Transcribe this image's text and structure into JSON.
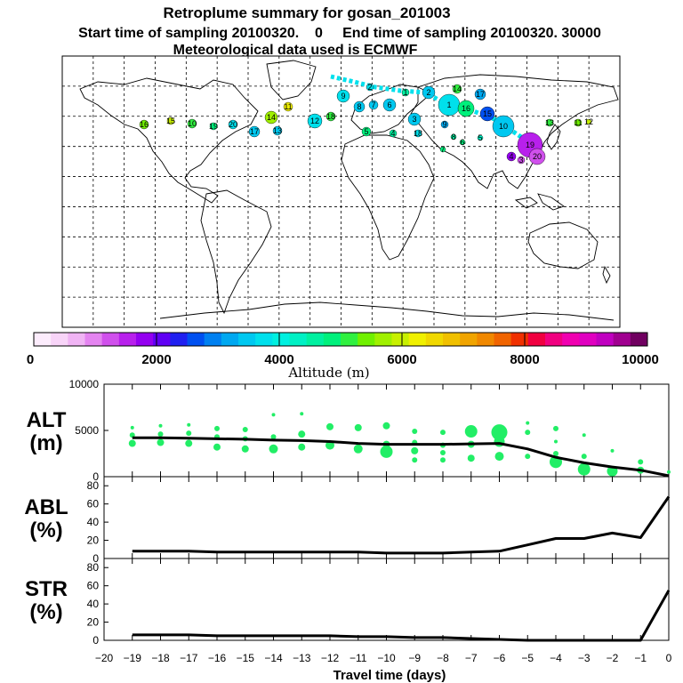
{
  "title": {
    "line1": "Retroplume summary for gosan_201003",
    "line2": "Start time of sampling 20100320.    0     End time of sampling 20100320. 30000",
    "line3": "Meteorological data used is ECMWF"
  },
  "colorbar": {
    "label": "Altitude (m)",
    "ticks": [
      "0",
      "2000",
      "4000",
      "6000",
      "8000",
      "10000"
    ],
    "colors": [
      "#fcecfc",
      "#f8d4f8",
      "#f0b4f4",
      "#e484f0",
      "#d050ec",
      "#b820ec",
      "#9400f0",
      "#6000f4",
      "#2020f0",
      "#0050f0",
      "#0080f0",
      "#00a8f0",
      "#00c8f0",
      "#00e0ec",
      "#00f0e0",
      "#00f0c4",
      "#00f0a0",
      "#00f07c",
      "#30f040",
      "#70f000",
      "#a0f000",
      "#c8f000",
      "#f0f000",
      "#f0d800",
      "#f0c000",
      "#f0a400",
      "#f08800",
      "#f06400",
      "#f03000",
      "#f00040",
      "#f00080",
      "#f000b0",
      "#e000c0",
      "#c000c0",
      "#a00090",
      "#700060"
    ]
  },
  "map_labels": [
    "16",
    "15",
    "10",
    "19",
    "20",
    "17",
    "14",
    "13",
    "11",
    "12",
    "18",
    "9",
    "8",
    "7",
    "6",
    "5",
    "4",
    "3",
    "2",
    "1"
  ],
  "chart_data": [
    {
      "name": "ALT",
      "type": "scatter+line",
      "ylabel": [
        "ALT",
        "(m)"
      ],
      "ylim": [
        0,
        10000
      ],
      "yticks": [
        "0",
        "5000",
        "10000"
      ],
      "xlim": [
        -20,
        0
      ],
      "line": {
        "x": [
          -19,
          -18,
          -17,
          -16,
          -15,
          -14,
          -13,
          -12,
          -11,
          -10,
          -9,
          -8,
          -7,
          -6,
          -5,
          -4,
          -3,
          -2,
          -1,
          0
        ],
        "y": [
          4200,
          4200,
          4150,
          4100,
          4050,
          3950,
          3900,
          3800,
          3600,
          3500,
          3500,
          3500,
          3550,
          3600,
          3000,
          2100,
          1500,
          1050,
          700,
          100
        ]
      },
      "points": [
        {
          "x": -19,
          "y": 5300,
          "s": 2
        },
        {
          "x": -19,
          "y": 4500,
          "s": 3
        },
        {
          "x": -19,
          "y": 3600,
          "s": 4
        },
        {
          "x": -18,
          "y": 5500,
          "s": 2
        },
        {
          "x": -18,
          "y": 4600,
          "s": 3
        },
        {
          "x": -18,
          "y": 3700,
          "s": 4
        },
        {
          "x": -17,
          "y": 5600,
          "s": 2
        },
        {
          "x": -17,
          "y": 4700,
          "s": 3
        },
        {
          "x": -17,
          "y": 3600,
          "s": 4
        },
        {
          "x": -16,
          "y": 5200,
          "s": 3
        },
        {
          "x": -16,
          "y": 4300,
          "s": 3
        },
        {
          "x": -16,
          "y": 3200,
          "s": 4
        },
        {
          "x": -15,
          "y": 5100,
          "s": 3
        },
        {
          "x": -15,
          "y": 4100,
          "s": 3
        },
        {
          "x": -15,
          "y": 3000,
          "s": 4
        },
        {
          "x": -14,
          "y": 6700,
          "s": 2
        },
        {
          "x": -14,
          "y": 4300,
          "s": 3
        },
        {
          "x": -14,
          "y": 3000,
          "s": 5
        },
        {
          "x": -13,
          "y": 6800,
          "s": 2
        },
        {
          "x": -13,
          "y": 4600,
          "s": 4
        },
        {
          "x": -13,
          "y": 3200,
          "s": 4
        },
        {
          "x": -12,
          "y": 5400,
          "s": 4
        },
        {
          "x": -12,
          "y": 3400,
          "s": 5
        },
        {
          "x": -11,
          "y": 5300,
          "s": 4
        },
        {
          "x": -11,
          "y": 3000,
          "s": 5
        },
        {
          "x": -10,
          "y": 5500,
          "s": 4
        },
        {
          "x": -10,
          "y": 3500,
          "s": 4
        },
        {
          "x": -10,
          "y": 2700,
          "s": 7
        },
        {
          "x": -9,
          "y": 4900,
          "s": 3
        },
        {
          "x": -9,
          "y": 3700,
          "s": 3
        },
        {
          "x": -9,
          "y": 2800,
          "s": 4
        },
        {
          "x": -9,
          "y": 1800,
          "s": 3
        },
        {
          "x": -8,
          "y": 4800,
          "s": 3
        },
        {
          "x": -8,
          "y": 3400,
          "s": 3
        },
        {
          "x": -8,
          "y": 2600,
          "s": 3
        },
        {
          "x": -8,
          "y": 1800,
          "s": 3
        },
        {
          "x": -7,
          "y": 4900,
          "s": 7
        },
        {
          "x": -7,
          "y": 3500,
          "s": 4
        },
        {
          "x": -7,
          "y": 2000,
          "s": 4
        },
        {
          "x": -6,
          "y": 4800,
          "s": 9
        },
        {
          "x": -6,
          "y": 3800,
          "s": 6
        },
        {
          "x": -6,
          "y": 2200,
          "s": 5
        },
        {
          "x": -5,
          "y": 5800,
          "s": 2
        },
        {
          "x": -5,
          "y": 4800,
          "s": 3
        },
        {
          "x": -5,
          "y": 2200,
          "s": 3
        },
        {
          "x": -4,
          "y": 5200,
          "s": 3
        },
        {
          "x": -4,
          "y": 3800,
          "s": 2
        },
        {
          "x": -4,
          "y": 2500,
          "s": 3
        },
        {
          "x": -4,
          "y": 1600,
          "s": 7
        },
        {
          "x": -3,
          "y": 4500,
          "s": 2
        },
        {
          "x": -3,
          "y": 2200,
          "s": 3
        },
        {
          "x": -3,
          "y": 800,
          "s": 7
        },
        {
          "x": -2,
          "y": 2800,
          "s": 2
        },
        {
          "x": -2,
          "y": 600,
          "s": 6
        },
        {
          "x": -1,
          "y": 1600,
          "s": 3
        },
        {
          "x": -1,
          "y": 700,
          "s": 4
        },
        {
          "x": 0,
          "y": 500,
          "s": 2
        }
      ]
    },
    {
      "name": "ABL",
      "type": "line",
      "ylabel": [
        "ABL",
        "(%)"
      ],
      "ylim": [
        0,
        90
      ],
      "yticks": [
        "0",
        "20",
        "40",
        "60",
        "80"
      ],
      "xlim": [
        -20,
        0
      ],
      "x": [
        -19,
        -18,
        -17,
        -16,
        -15,
        -14,
        -13,
        -12,
        -11,
        -10,
        -9,
        -8,
        -7,
        -6,
        -5,
        -4,
        -3,
        -2,
        -1,
        0
      ],
      "y": [
        8,
        8,
        8,
        7,
        7,
        7,
        7,
        7,
        7,
        6,
        6,
        6,
        7,
        8,
        15,
        22,
        22,
        28,
        23,
        68
      ]
    },
    {
      "name": "STR",
      "type": "line",
      "ylabel": [
        "STR",
        "(%)"
      ],
      "ylim": [
        0,
        90
      ],
      "yticks": [
        "0",
        "20",
        "40",
        "60",
        "80"
      ],
      "xlim": [
        -20,
        0
      ],
      "x": [
        -19,
        -18,
        -17,
        -16,
        -15,
        -14,
        -13,
        -12,
        -11,
        -10,
        -9,
        -8,
        -7,
        -6,
        -5,
        -4,
        -3,
        -2,
        -1,
        0
      ],
      "y": [
        6,
        6,
        6,
        5,
        5,
        5,
        5,
        5,
        4,
        4,
        3,
        3,
        2,
        1,
        0,
        0,
        0,
        0,
        0,
        55
      ]
    }
  ],
  "x_axis": {
    "label": "Travel time (days)",
    "ticks": [
      "−20",
      "−19",
      "−18",
      "−17",
      "−16",
      "−15",
      "−14",
      "−13",
      "−12",
      "−11",
      "−10",
      "−9",
      "−8",
      "−7",
      "−6",
      "−5",
      "−4",
      "−3",
      "−2",
      "−1",
      "0"
    ]
  },
  "marker_color": "#22ee66",
  "line_color": "#000000"
}
